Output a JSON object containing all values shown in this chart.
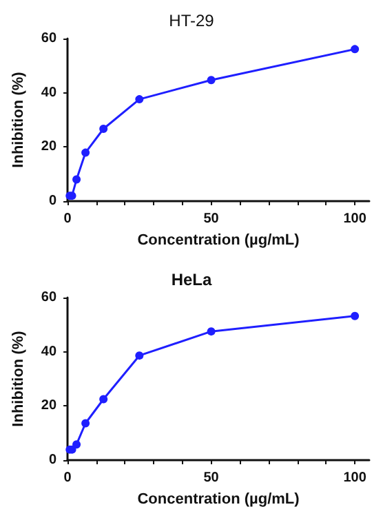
{
  "chart_data": [
    {
      "type": "line",
      "title": "HT-29",
      "xlabel": "Concentration (µg/mL)",
      "ylabel": "Inhibition (%)",
      "x": [
        0.78,
        1.56,
        3.125,
        6.25,
        12.5,
        25,
        50,
        100
      ],
      "series": [
        {
          "color": "#1f1fff",
          "values": [
            2,
            2,
            8,
            17.9,
            26.7,
            37.6,
            44.7,
            56.1
          ]
        }
      ],
      "xlim": [
        0,
        105
      ],
      "xticks": [
        0,
        {
          "value": 10,
          "label": null
        },
        {
          "value": 20,
          "label": null
        },
        {
          "value": 30,
          "label": null
        },
        {
          "value": 40,
          "label": null
        },
        50,
        {
          "value": 60,
          "label": null
        },
        {
          "value": 70,
          "label": null
        },
        {
          "value": 80,
          "label": null
        },
        {
          "value": 90,
          "label": null
        },
        100
      ],
      "ylim": [
        0,
        60
      ],
      "yticks": [
        0,
        20,
        40,
        60
      ],
      "grid": false,
      "marker": "circle",
      "line_style": "solid"
    },
    {
      "type": "line",
      "title": "HeLa",
      "xlabel": "Concentration (µg/mL)",
      "ylabel": "Inhibition (%)",
      "x": [
        0.78,
        1.56,
        3.125,
        6.25,
        12.5,
        25,
        50,
        100
      ],
      "series": [
        {
          "color": "#1f1fff",
          "values": [
            3.9,
            3.9,
            5.8,
            13.6,
            22.5,
            38.6,
            47.5,
            53.2
          ]
        }
      ],
      "xlim": [
        0,
        105
      ],
      "xticks": [
        0,
        {
          "value": 10,
          "label": null
        },
        {
          "value": 20,
          "label": null
        },
        {
          "value": 30,
          "label": null
        },
        {
          "value": 40,
          "label": null
        },
        50,
        {
          "value": 60,
          "label": null
        },
        {
          "value": 70,
          "label": null
        },
        {
          "value": 80,
          "label": null
        },
        {
          "value": 90,
          "label": null
        },
        100
      ],
      "ylim": [
        0,
        60
      ],
      "yticks": [
        0,
        20,
        40,
        60
      ],
      "grid": false,
      "marker": "circle",
      "line_style": "solid"
    }
  ]
}
